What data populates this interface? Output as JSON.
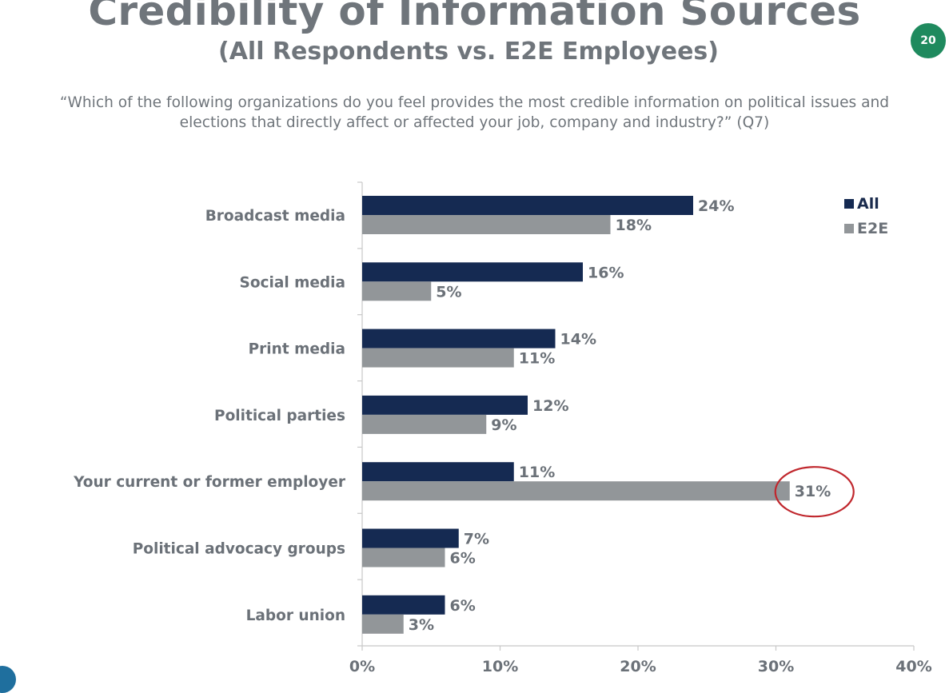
{
  "slide": {
    "title": "Credibility of Information Sources",
    "subtitle": "(All Respondents vs. E2E Employees)",
    "page_number": "20",
    "question_line1": "“Which of the following organizations do you feel provides the most credible information on political issues and",
    "question_line2": "elections that directly affect or affected your job, company and industry?” (Q7)"
  },
  "chart_data": {
    "type": "bar",
    "orientation": "horizontal",
    "categories": [
      "Broadcast media",
      "Social media",
      "Print media",
      "Political parties",
      "Your current or former employer",
      "Political advocacy groups",
      "Labor union"
    ],
    "series": [
      {
        "name": "All",
        "values": [
          24,
          16,
          14,
          12,
          11,
          7,
          6
        ],
        "labels": [
          "24%",
          "16%",
          "14%",
          "12%",
          "11%",
          "7%",
          "6%"
        ],
        "color": "#152a52"
      },
      {
        "name": "E2E",
        "values": [
          18,
          5,
          11,
          9,
          31,
          6,
          3
        ],
        "labels": [
          "18%",
          "5%",
          "11%",
          "9%",
          "31%",
          "6%",
          "3%"
        ],
        "color": "#929699"
      }
    ],
    "xlim": [
      0,
      40
    ],
    "xticks": [
      0,
      10,
      20,
      30,
      40
    ],
    "xtick_labels": [
      "0%",
      "10%",
      "20%",
      "30%",
      "40%"
    ],
    "legend_position": "top-right",
    "grid": false,
    "highlight": {
      "series": "E2E",
      "category": "Your current or former employer",
      "shape": "circle",
      "color": "#c0272d"
    }
  }
}
